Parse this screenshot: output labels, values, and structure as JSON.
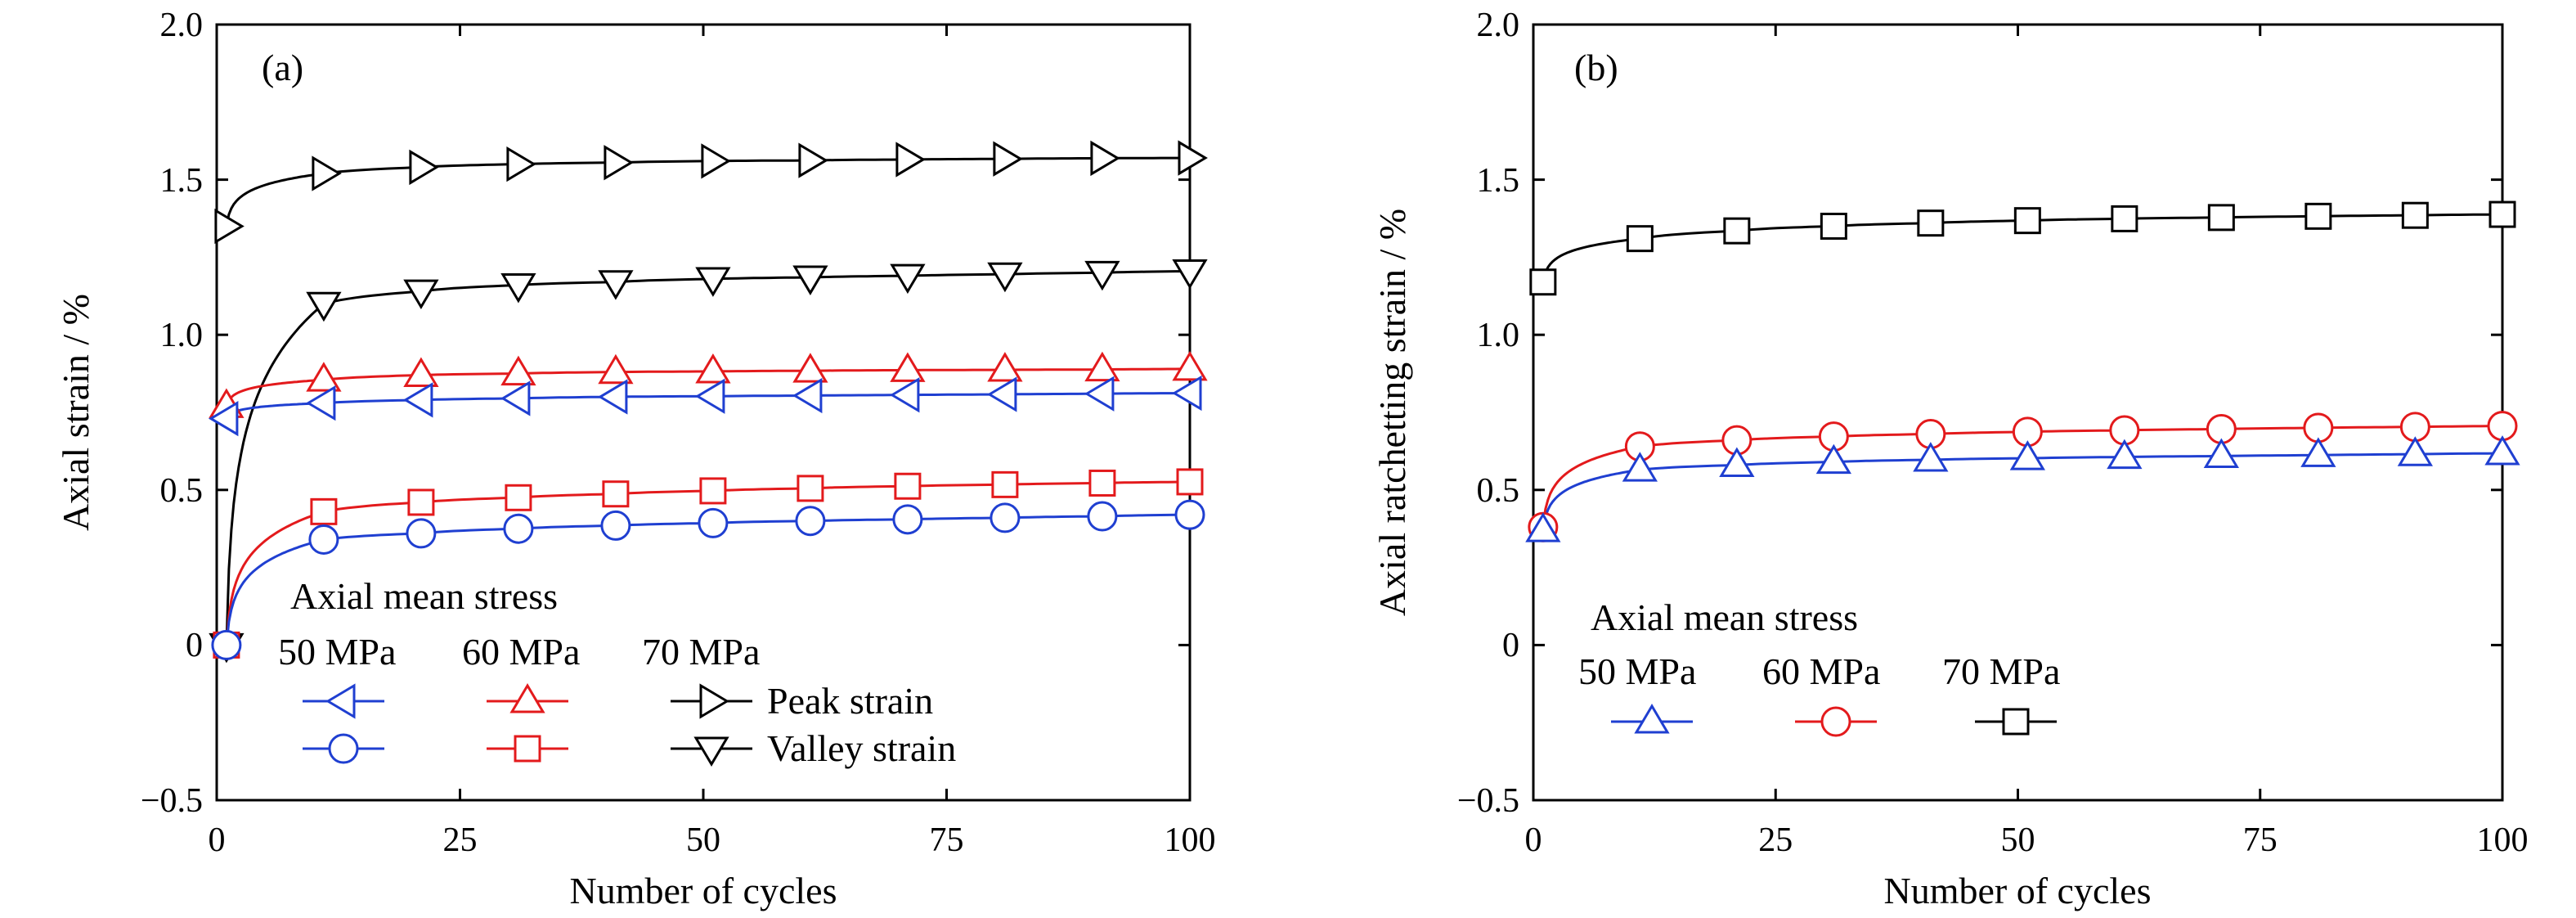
{
  "chart_data": [
    {
      "type": "line",
      "panel_label": "(a)",
      "xlabel": "Number of cycles",
      "ylabel": "Axial strain / %",
      "xlim": [
        0,
        100
      ],
      "ylim": [
        -0.5,
        2.0
      ],
      "xticks": [
        "0",
        "25",
        "50",
        "75",
        "100"
      ],
      "yticks": [
        "−0.5",
        "0",
        "0.5",
        "1.0",
        "1.5",
        "2.0"
      ],
      "legend": {
        "title": "Axial mean stress",
        "columns": [
          "50 MPa",
          "60 MPa",
          "70 MPa"
        ],
        "rows": [
          "Peak strain",
          "Valley strain"
        ],
        "placement": "lower-left"
      },
      "series": [
        {
          "name": "Peak strain",
          "stress": "70 MPa",
          "color": "#000000",
          "marker": "triangle-right",
          "x": [
            1,
            11,
            21,
            31,
            41,
            51,
            61,
            71,
            81,
            91,
            100
          ],
          "y": [
            1.35,
            1.52,
            1.54,
            1.55,
            1.555,
            1.56,
            1.562,
            1.565,
            1.567,
            1.569,
            1.57
          ]
        },
        {
          "name": "Valley strain",
          "stress": "70 MPa",
          "color": "#000000",
          "marker": "triangle-down",
          "x": [
            1,
            11,
            21,
            31,
            41,
            51,
            61,
            71,
            81,
            91,
            100
          ],
          "y": [
            0.0,
            1.1,
            1.14,
            1.16,
            1.17,
            1.18,
            1.185,
            1.19,
            1.195,
            1.2,
            1.205
          ]
        },
        {
          "name": "Peak strain",
          "stress": "60 MPa",
          "color": "#e31a1c",
          "marker": "triangle-up",
          "x": [
            1,
            11,
            21,
            31,
            41,
            51,
            61,
            71,
            81,
            91,
            100
          ],
          "y": [
            0.77,
            0.855,
            0.87,
            0.875,
            0.88,
            0.882,
            0.884,
            0.886,
            0.887,
            0.888,
            0.89
          ]
        },
        {
          "name": "Peak strain",
          "stress": "50 MPa",
          "color": "#1f3fd1",
          "marker": "triangle-left",
          "x": [
            1,
            11,
            21,
            31,
            41,
            51,
            61,
            71,
            81,
            91,
            100
          ],
          "y": [
            0.73,
            0.78,
            0.79,
            0.795,
            0.8,
            0.802,
            0.804,
            0.806,
            0.808,
            0.81,
            0.812
          ]
        },
        {
          "name": "Valley strain",
          "stress": "60 MPa",
          "color": "#e31a1c",
          "marker": "square",
          "x": [
            1,
            11,
            21,
            31,
            41,
            51,
            61,
            71,
            81,
            91,
            100
          ],
          "y": [
            0.0,
            0.43,
            0.46,
            0.475,
            0.487,
            0.497,
            0.505,
            0.512,
            0.517,
            0.522,
            0.526
          ]
        },
        {
          "name": "Valley strain",
          "stress": "50 MPa",
          "color": "#1f3fd1",
          "marker": "circle",
          "x": [
            1,
            11,
            21,
            31,
            41,
            51,
            61,
            71,
            81,
            91,
            100
          ],
          "y": [
            0.0,
            0.34,
            0.36,
            0.375,
            0.385,
            0.393,
            0.4,
            0.405,
            0.41,
            0.415,
            0.42
          ]
        }
      ]
    },
    {
      "type": "line",
      "panel_label": "(b)",
      "xlabel": "Number of cycles",
      "ylabel": "Axial ratchetting strain / %",
      "xlim": [
        0,
        100
      ],
      "ylim": [
        -0.5,
        2.0
      ],
      "xticks": [
        "0",
        "25",
        "50",
        "75",
        "100"
      ],
      "yticks": [
        "−0.5",
        "0",
        "0.5",
        "1.0",
        "1.5",
        "2.0"
      ],
      "legend": {
        "title": "Axial mean stress",
        "columns": [
          "50 MPa",
          "60 MPa",
          "70 MPa"
        ],
        "placement": "lower-left"
      },
      "series": [
        {
          "name": "70 MPa",
          "color": "#000000",
          "marker": "square",
          "x": [
            1,
            11,
            21,
            31,
            41,
            51,
            61,
            71,
            81,
            91,
            100
          ],
          "y": [
            1.17,
            1.31,
            1.335,
            1.35,
            1.36,
            1.368,
            1.374,
            1.378,
            1.382,
            1.385,
            1.388
          ]
        },
        {
          "name": "60 MPa",
          "color": "#e31a1c",
          "marker": "circle",
          "x": [
            1,
            11,
            21,
            31,
            41,
            51,
            61,
            71,
            81,
            91,
            100
          ],
          "y": [
            0.38,
            0.64,
            0.66,
            0.672,
            0.68,
            0.687,
            0.692,
            0.696,
            0.7,
            0.703,
            0.706
          ]
        },
        {
          "name": "50 MPa",
          "color": "#1f3fd1",
          "marker": "triangle-up",
          "x": [
            1,
            11,
            21,
            31,
            41,
            51,
            61,
            71,
            81,
            91,
            100
          ],
          "y": [
            0.37,
            0.565,
            0.58,
            0.59,
            0.597,
            0.602,
            0.606,
            0.609,
            0.612,
            0.615,
            0.618
          ]
        }
      ]
    }
  ]
}
